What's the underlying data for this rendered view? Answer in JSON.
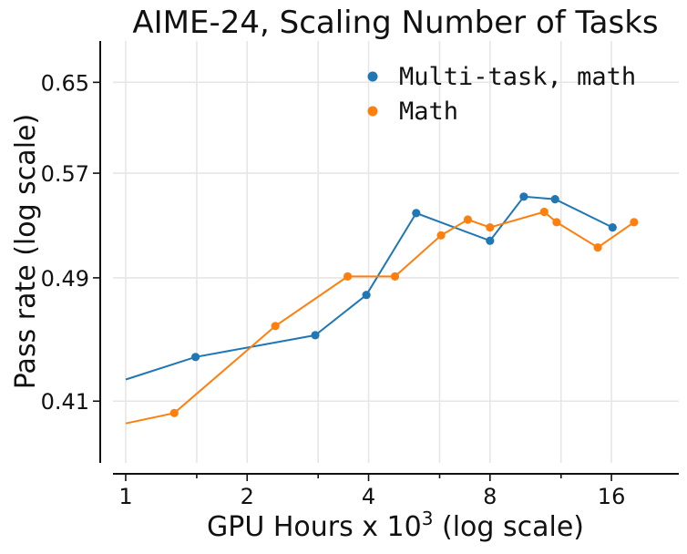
{
  "chart_data": {
    "type": "line",
    "title": "AIME-24, Scaling Number of Tasks",
    "xlabel": "GPU Hours x 10",
    "xlabel_superscript": "3",
    "xlabel_suffix": " (log scale)",
    "ylabel": "Pass rate (log scale)",
    "xscale": "log2",
    "yscale": "log",
    "xlim": [
      0.93,
      23.5
    ],
    "ylim": [
      0.375,
      0.69
    ],
    "xticks": [
      {
        "value": 1,
        "label": "1"
      },
      {
        "value": 2,
        "label": "2"
      },
      {
        "value": 4,
        "label": "4"
      },
      {
        "value": 8,
        "label": "8"
      },
      {
        "value": 16,
        "label": "16"
      }
    ],
    "x_minor_ticks": [
      1.5,
      3,
      6,
      12,
      24
    ],
    "yticks": [
      {
        "value": 0.41,
        "label": "0.41"
      },
      {
        "value": 0.49,
        "label": "0.49"
      },
      {
        "value": 0.57,
        "label": "0.57"
      },
      {
        "value": 0.65,
        "label": "0.65"
      }
    ],
    "grid": true,
    "legend_position": "top-right",
    "series": [
      {
        "name": "Multi-task, math",
        "color": "#1f77b4",
        "line_start": {
          "x": 1.0,
          "y": 0.423
        },
        "points": [
          {
            "x": 1.49,
            "y": 0.437
          },
          {
            "x": 2.95,
            "y": 0.451
          },
          {
            "x": 3.95,
            "y": 0.478
          },
          {
            "x": 5.25,
            "y": 0.538
          },
          {
            "x": 8.0,
            "y": 0.517
          },
          {
            "x": 9.7,
            "y": 0.551
          },
          {
            "x": 11.6,
            "y": 0.549
          },
          {
            "x": 16.1,
            "y": 0.527
          }
        ]
      },
      {
        "name": "Math",
        "color": "#ff7f0e",
        "line_start": {
          "x": 1.0,
          "y": 0.397
        },
        "points": [
          {
            "x": 1.32,
            "y": 0.403
          },
          {
            "x": 2.35,
            "y": 0.457
          },
          {
            "x": 3.55,
            "y": 0.491
          },
          {
            "x": 4.65,
            "y": 0.491
          },
          {
            "x": 6.05,
            "y": 0.521
          },
          {
            "x": 7.05,
            "y": 0.533
          },
          {
            "x": 8.0,
            "y": 0.527
          },
          {
            "x": 10.9,
            "y": 0.539
          },
          {
            "x": 11.7,
            "y": 0.531
          },
          {
            "x": 14.8,
            "y": 0.512
          },
          {
            "x": 18.2,
            "y": 0.531
          }
        ]
      }
    ]
  }
}
